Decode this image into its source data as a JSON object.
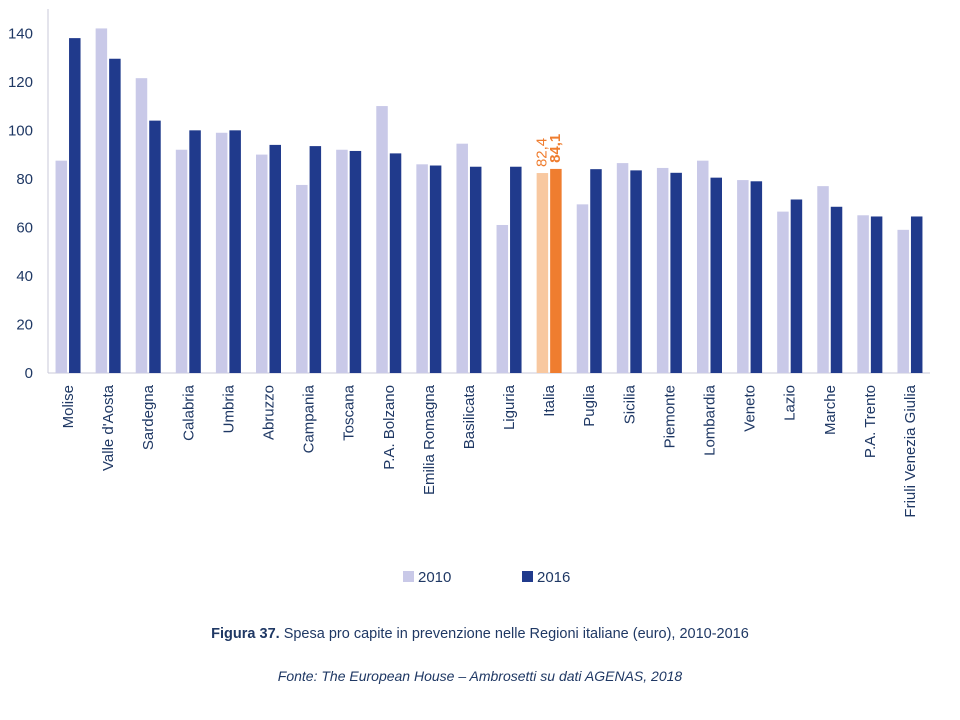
{
  "chart_data": {
    "type": "bar",
    "categories": [
      "Molise",
      "Valle d'Aosta",
      "Sardegna",
      "Calabria",
      "Umbria",
      "Abruzzo",
      "Campania",
      "Toscana",
      "P.A. Bolzano",
      "Emilia Romagna",
      "Basilicata",
      "Liguria",
      "Italia",
      "Puglia",
      "Sicilia",
      "Piemonte",
      "Lombardia",
      "Veneto",
      "Lazio",
      "Marche",
      "P.A. Trento",
      "Friuli Venezia Giulia"
    ],
    "series": [
      {
        "name": "2010",
        "values": [
          87.5,
          142,
          121.5,
          92,
          99,
          90,
          77.5,
          92,
          110,
          86,
          94.5,
          61,
          82.4,
          69.5,
          86.5,
          84.5,
          87.5,
          79.5,
          66.5,
          77,
          65,
          59
        ]
      },
      {
        "name": "2016",
        "values": [
          138,
          129.5,
          104,
          100,
          100,
          94,
          93.5,
          91.5,
          90.5,
          85.5,
          85,
          85,
          84.1,
          84,
          83.5,
          82.5,
          80.5,
          79,
          71.5,
          68.5,
          64.5,
          64.5
        ]
      }
    ],
    "highlight": {
      "category": "Italia",
      "labels": [
        "82,4",
        "84,1"
      ]
    },
    "yticks": [
      0,
      20,
      40,
      60,
      80,
      100,
      120,
      140
    ],
    "ylim": [
      0,
      150
    ],
    "grid": false,
    "legend_position": "bottom-center",
    "colors": {
      "s2010": "#c9c9e8",
      "s2016": "#203a8c",
      "highlight2010": "#f8c8a0",
      "highlight2016": "#ef7d2f",
      "axis": "#c8c8d8",
      "text": "#1f3864"
    }
  },
  "caption": {
    "figure_number": "Figura 37.",
    "text": " Spesa pro capite in prevenzione nelle Regioni italiane (euro), 2010-2016"
  },
  "source": "Fonte: The European House – Ambrosetti su dati AGENAS, 2018"
}
